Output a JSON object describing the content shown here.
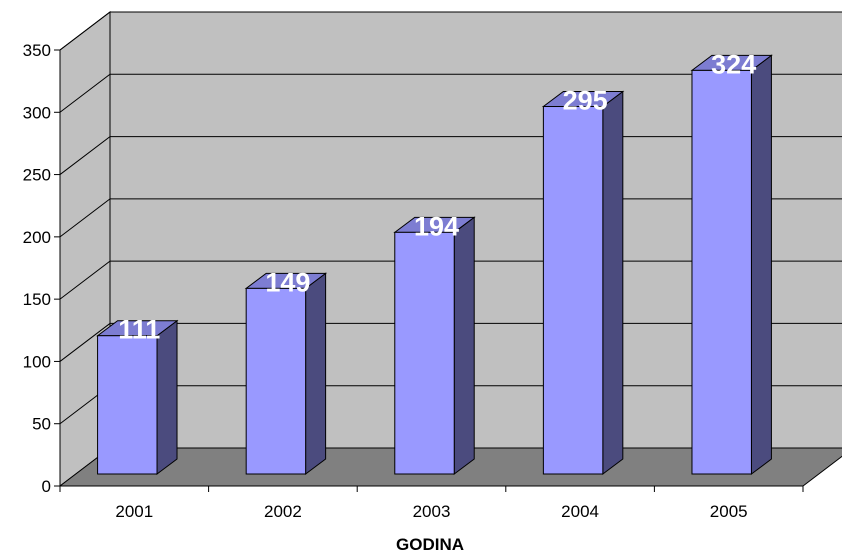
{
  "chart_data": {
    "type": "bar",
    "style": "3d-column",
    "categories": [
      "2001",
      "2002",
      "2003",
      "2004",
      "2005"
    ],
    "values": [
      111,
      149,
      194,
      295,
      324
    ],
    "data_labels": [
      "111",
      "149",
      "194",
      "295",
      "324"
    ],
    "xlabel": "GODINA",
    "ylabel": "",
    "ylim": [
      0,
      350
    ],
    "yticks": [
      "0",
      "50",
      "100",
      "150",
      "200",
      "250",
      "300",
      "350"
    ],
    "grid": true,
    "legend": false
  },
  "colors": {
    "bar_front": "#9999ff",
    "bar_side": "#4b4b7e",
    "bar_top": "#7d7dd2",
    "wall": "#c0c0c0",
    "floor": "#808080",
    "gridline": "#000000"
  }
}
